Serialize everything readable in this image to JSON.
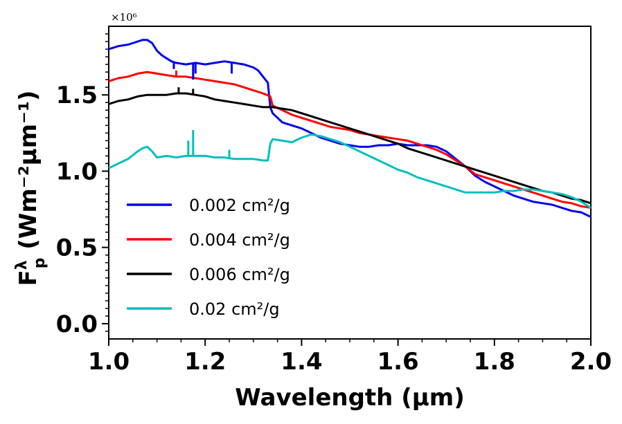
{
  "chart_data": {
    "type": "line",
    "title": "",
    "xlabel": "Wavelength (μm)",
    "ylabel_main": "F",
    "ylabel_sup": "λ",
    "ylabel_sub": "p",
    "ylabel_units": " (Wm⁻²μm⁻¹)",
    "offset_text": "×10⁶",
    "xlim": [
      1.0,
      2.0
    ],
    "ylim": [
      -0.1,
      1.95
    ],
    "xticks": [
      1.0,
      1.2,
      1.4,
      1.6,
      1.8,
      2.0
    ],
    "xtick_labels": [
      "1.0",
      "1.2",
      "1.4",
      "1.6",
      "1.8",
      "2.0"
    ],
    "yticks": [
      0.0,
      0.5,
      1.0,
      1.5
    ],
    "ytick_labels": [
      "0.0",
      "0.5",
      "1.0",
      "1.5"
    ],
    "grid": false,
    "legend_position": "lower-left",
    "series": [
      {
        "name": "0.002 cm²/g",
        "color": "#0000ee",
        "x": [
          1.0,
          1.02,
          1.04,
          1.06,
          1.07,
          1.08,
          1.09,
          1.1,
          1.11,
          1.12,
          1.13,
          1.14,
          1.16,
          1.18,
          1.2,
          1.22,
          1.24,
          1.26,
          1.28,
          1.3,
          1.31,
          1.32,
          1.33,
          1.335,
          1.34,
          1.36,
          1.38,
          1.4,
          1.42,
          1.44,
          1.46,
          1.48,
          1.5,
          1.52,
          1.54,
          1.56,
          1.58,
          1.6,
          1.62,
          1.64,
          1.66,
          1.68,
          1.7,
          1.72,
          1.74,
          1.76,
          1.78,
          1.8,
          1.82,
          1.84,
          1.86,
          1.88,
          1.9,
          1.92,
          1.94,
          1.96,
          1.98,
          2.0
        ],
        "y": [
          1.8,
          1.82,
          1.83,
          1.85,
          1.86,
          1.86,
          1.84,
          1.79,
          1.76,
          1.74,
          1.72,
          1.71,
          1.7,
          1.71,
          1.7,
          1.71,
          1.72,
          1.71,
          1.7,
          1.68,
          1.66,
          1.62,
          1.58,
          1.42,
          1.38,
          1.32,
          1.3,
          1.28,
          1.25,
          1.22,
          1.2,
          1.18,
          1.17,
          1.16,
          1.16,
          1.17,
          1.17,
          1.18,
          1.17,
          1.17,
          1.17,
          1.16,
          1.13,
          1.08,
          1.03,
          0.97,
          0.93,
          0.9,
          0.87,
          0.84,
          0.82,
          0.8,
          0.79,
          0.78,
          0.76,
          0.74,
          0.73,
          0.7
        ]
      },
      {
        "name": "0.004 cm²/g",
        "color": "#ff0000",
        "x": [
          1.0,
          1.02,
          1.04,
          1.06,
          1.08,
          1.1,
          1.12,
          1.14,
          1.16,
          1.18,
          1.2,
          1.22,
          1.24,
          1.26,
          1.28,
          1.3,
          1.32,
          1.335,
          1.34,
          1.36,
          1.38,
          1.4,
          1.42,
          1.44,
          1.46,
          1.48,
          1.5,
          1.52,
          1.54,
          1.56,
          1.58,
          1.6,
          1.62,
          1.64,
          1.66,
          1.68,
          1.7,
          1.72,
          1.74,
          1.76,
          1.78,
          1.8,
          1.82,
          1.84,
          1.86,
          1.88,
          1.9,
          1.92,
          1.94,
          1.96,
          1.98,
          2.0
        ],
        "y": [
          1.59,
          1.61,
          1.62,
          1.64,
          1.65,
          1.64,
          1.63,
          1.62,
          1.62,
          1.61,
          1.6,
          1.59,
          1.58,
          1.57,
          1.55,
          1.53,
          1.51,
          1.49,
          1.43,
          1.4,
          1.37,
          1.35,
          1.33,
          1.31,
          1.29,
          1.28,
          1.27,
          1.25,
          1.24,
          1.23,
          1.22,
          1.21,
          1.2,
          1.18,
          1.16,
          1.14,
          1.11,
          1.07,
          1.03,
          0.98,
          0.96,
          0.94,
          0.92,
          0.9,
          0.88,
          0.86,
          0.84,
          0.82,
          0.8,
          0.79,
          0.77,
          0.76
        ]
      },
      {
        "name": "0.006 cm²/g",
        "color": "#000000",
        "x": [
          1.0,
          1.02,
          1.04,
          1.06,
          1.08,
          1.1,
          1.12,
          1.14,
          1.16,
          1.18,
          1.2,
          1.22,
          1.24,
          1.26,
          1.28,
          1.3,
          1.32,
          1.34,
          1.36,
          1.38,
          1.4,
          1.42,
          1.44,
          1.46,
          1.48,
          1.5,
          1.52,
          1.54,
          1.56,
          1.58,
          1.6,
          1.62,
          1.64,
          1.66,
          1.68,
          1.7,
          1.72,
          1.74,
          1.76,
          1.78,
          1.8,
          1.82,
          1.84,
          1.86,
          1.88,
          1.9,
          1.92,
          1.94,
          1.96,
          1.98,
          2.0
        ],
        "y": [
          1.44,
          1.46,
          1.47,
          1.49,
          1.5,
          1.5,
          1.5,
          1.51,
          1.51,
          1.5,
          1.49,
          1.47,
          1.46,
          1.45,
          1.44,
          1.43,
          1.42,
          1.42,
          1.41,
          1.4,
          1.38,
          1.36,
          1.34,
          1.32,
          1.3,
          1.28,
          1.26,
          1.24,
          1.22,
          1.2,
          1.18,
          1.15,
          1.13,
          1.11,
          1.09,
          1.07,
          1.05,
          1.03,
          1.01,
          0.99,
          0.97,
          0.95,
          0.93,
          0.91,
          0.89,
          0.87,
          0.86,
          0.84,
          0.82,
          0.81,
          0.79
        ]
      },
      {
        "name": "0.02 cm²/g",
        "color": "#00bfbf",
        "x": [
          1.0,
          1.02,
          1.04,
          1.06,
          1.07,
          1.08,
          1.09,
          1.1,
          1.12,
          1.14,
          1.16,
          1.18,
          1.2,
          1.22,
          1.24,
          1.26,
          1.28,
          1.3,
          1.32,
          1.33,
          1.335,
          1.34,
          1.36,
          1.38,
          1.4,
          1.42,
          1.44,
          1.46,
          1.48,
          1.5,
          1.52,
          1.54,
          1.56,
          1.58,
          1.6,
          1.62,
          1.64,
          1.66,
          1.68,
          1.7,
          1.72,
          1.74,
          1.76,
          1.78,
          1.8,
          1.82,
          1.84,
          1.86,
          1.88,
          1.9,
          1.92,
          1.94,
          1.96,
          1.98,
          2.0
        ],
        "y": [
          1.02,
          1.05,
          1.08,
          1.13,
          1.15,
          1.16,
          1.13,
          1.09,
          1.1,
          1.09,
          1.1,
          1.1,
          1.1,
          1.09,
          1.09,
          1.08,
          1.08,
          1.08,
          1.07,
          1.07,
          1.18,
          1.21,
          1.2,
          1.19,
          1.22,
          1.24,
          1.23,
          1.21,
          1.19,
          1.16,
          1.13,
          1.1,
          1.07,
          1.04,
          1.01,
          0.99,
          0.96,
          0.94,
          0.92,
          0.9,
          0.88,
          0.86,
          0.86,
          0.86,
          0.86,
          0.87,
          0.87,
          0.88,
          0.88,
          0.87,
          0.86,
          0.85,
          0.83,
          0.8,
          0.76
        ]
      }
    ],
    "spikes": [
      {
        "series": 0,
        "x": 1.135,
        "y_to": 1.67
      },
      {
        "series": 0,
        "x": 1.175,
        "y_to": 1.6
      },
      {
        "series": 0,
        "x": 1.18,
        "y_to": 1.64
      },
      {
        "series": 0,
        "x": 1.255,
        "y_to": 1.64
      },
      {
        "series": 1,
        "x": 1.14,
        "y_to": 1.66
      },
      {
        "series": 2,
        "x": 1.145,
        "y_to": 1.55
      },
      {
        "series": 2,
        "x": 1.175,
        "y_to": 1.54
      },
      {
        "series": 3,
        "x": 1.165,
        "y_to": 1.2
      },
      {
        "series": 3,
        "x": 1.175,
        "y_to": 1.27
      },
      {
        "series": 3,
        "x": 1.25,
        "y_to": 1.14
      }
    ]
  }
}
